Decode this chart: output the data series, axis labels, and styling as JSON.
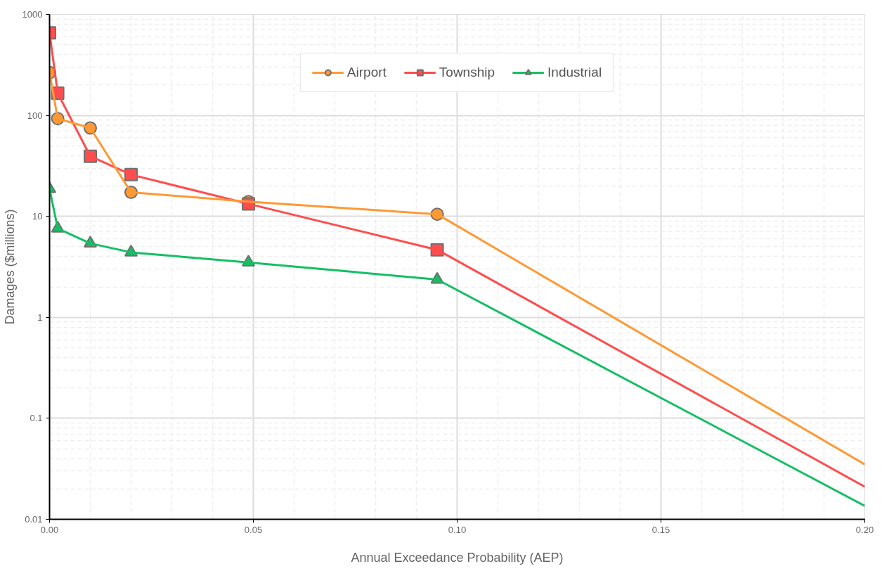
{
  "chart_data": {
    "type": "line",
    "xlabel": "Annual Exceedance Probability (AEP)",
    "ylabel": "Damages ($millions)",
    "x": [
      0,
      0.002,
      0.01,
      0.02,
      0.0488,
      0.0951,
      0.2
    ],
    "series": [
      {
        "name": "Airport",
        "color": "#ff9933",
        "marker": "circle",
        "values": [
          265,
          93,
          75,
          17.3,
          14,
          10.5,
          0.035
        ]
      },
      {
        "name": "Township",
        "color": "#ff4d4d",
        "marker": "square",
        "values": [
          657,
          166,
          39.4,
          25.9,
          13.3,
          4.67,
          0.021
        ]
      },
      {
        "name": "Industrial",
        "color": "#14bf64",
        "marker": "triangle",
        "values": [
          18.7,
          7.6,
          5.4,
          4.4,
          3.5,
          2.37,
          0.0136
        ]
      }
    ],
    "log": "y",
    "xlim": [
      0,
      0.2
    ],
    "ylim": [
      0.01,
      1000
    ],
    "xticks": [
      {
        "value": 0,
        "label": "0.00"
      },
      {
        "value": 0.05,
        "label": "0.05"
      },
      {
        "value": 0.1,
        "label": "0.10"
      },
      {
        "value": 0.15,
        "label": "0.15"
      },
      {
        "value": 0.2,
        "label": "0.20"
      }
    ],
    "yticks": [
      0.01,
      0.1,
      1,
      10,
      100,
      1000
    ],
    "grid": true,
    "legend": "top",
    "line_style": "solid"
  }
}
